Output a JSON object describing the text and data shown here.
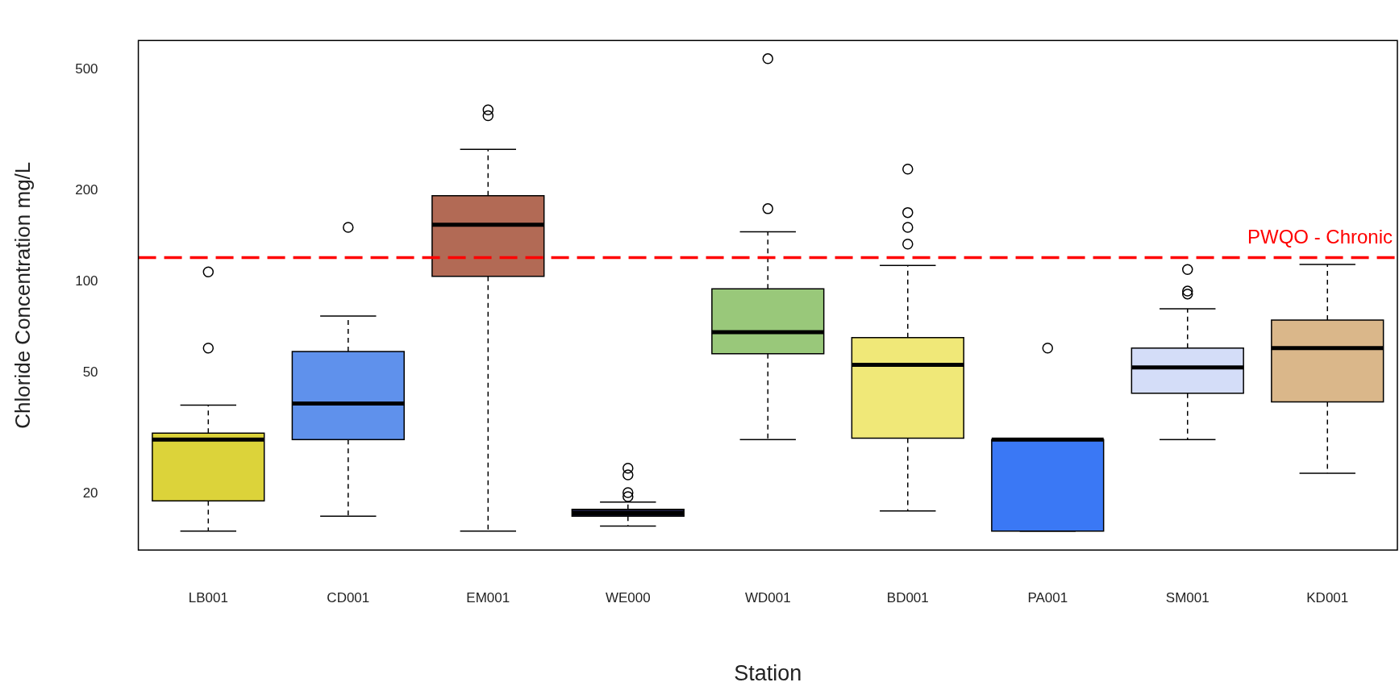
{
  "chart_data": {
    "type": "box",
    "xlabel": "Station",
    "ylabel": "Chloride Concentration mg/L",
    "categories": [
      "LB001",
      "CD001",
      "EM001",
      "WE000",
      "WD001",
      "BD001",
      "PA001",
      "SM001",
      "KD001"
    ],
    "colors": [
      "#dcd33a",
      "#5f91ec",
      "#b26a55",
      "#1c1c3c",
      "#99c87a",
      "#f0e878",
      "#3a78f5",
      "#d4ddf8",
      "#dab78a"
    ],
    "boxes": [
      {
        "low": 15.0,
        "q1": 18.9,
        "median": 30.1,
        "q3": 31.6,
        "high": 39.1,
        "outliers": [
          60.3,
          107.6
        ]
      },
      {
        "low": 16.8,
        "q1": 30.1,
        "median": 39.6,
        "q3": 58.8,
        "high": 77,
        "outliers": [
          151
        ]
      },
      {
        "low": 15.0,
        "q1": 104,
        "median": 154,
        "q3": 192,
        "high": 273,
        "outliers": [
          353,
          369
        ]
      },
      {
        "low": 15.6,
        "q1": 16.8,
        "median": 17.2,
        "q3": 17.7,
        "high": 18.7,
        "outliers": [
          19.5,
          20.1,
          23.0,
          24.2
        ]
      },
      {
        "low": 30.1,
        "q1": 57.8,
        "median": 68.1,
        "q3": 94.7,
        "high": 146,
        "outliers": [
          174,
          544
        ]
      },
      {
        "low": 17.5,
        "q1": 30.4,
        "median": 53.1,
        "q3": 65.3,
        "high": 113,
        "outliers": [
          133,
          151,
          169,
          235
        ]
      },
      {
        "low": 15.0,
        "q1": 15.0,
        "median": 30.1,
        "q3": 30.1,
        "high": 30.1,
        "outliers": [
          60.3
        ]
      },
      {
        "low": 30.1,
        "q1": 42.8,
        "median": 52.1,
        "q3": 60.3,
        "high": 81.3,
        "outliers": [
          91,
          93,
          109.6
        ]
      },
      {
        "low": 23.3,
        "q1": 40.1,
        "median": 60.3,
        "q3": 74.6,
        "high": 114
      }
    ],
    "ylim": [
      13,
      625
    ],
    "yticks": [
      20,
      50,
      100,
      200,
      500
    ],
    "log": "y",
    "ref_lines": [
      {
        "axis": "y",
        "value": 120,
        "label": "PWQO - Chronic",
        "color": "#ff0000",
        "line_style": "dashed"
      }
    ]
  }
}
